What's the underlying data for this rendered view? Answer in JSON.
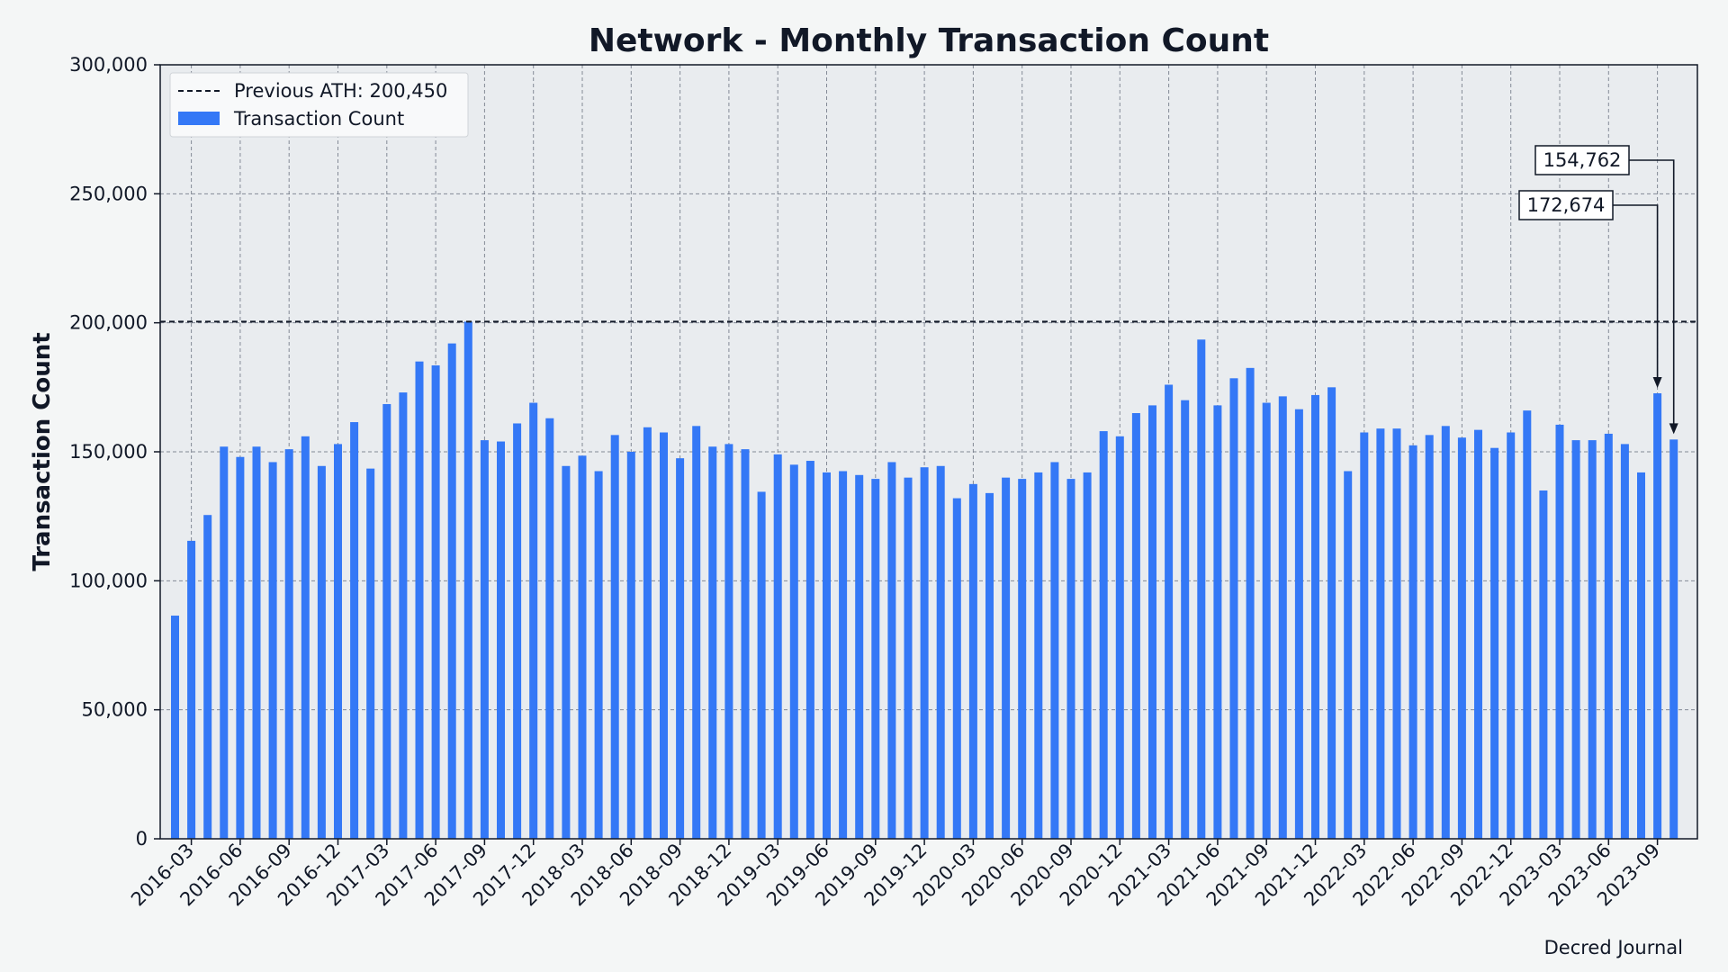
{
  "chart_data": {
    "type": "bar",
    "title": "Network - Monthly Transaction Count",
    "ylabel": "Transaction Count",
    "xlabel": "",
    "ylim": [
      0,
      300000
    ],
    "yticks": [
      0,
      50000,
      100000,
      150000,
      200000,
      250000,
      300000
    ],
    "ytick_labels": [
      "0",
      "50,000",
      "100,000",
      "150,000",
      "200,000",
      "250,000",
      "300,000"
    ],
    "grid": true,
    "legend_position": "top-left",
    "categories": [
      "2016-02",
      "2016-03",
      "2016-04",
      "2016-05",
      "2016-06",
      "2016-07",
      "2016-08",
      "2016-09",
      "2016-10",
      "2016-11",
      "2016-12",
      "2017-01",
      "2017-02",
      "2017-03",
      "2017-04",
      "2017-05",
      "2017-06",
      "2017-07",
      "2017-08",
      "2017-09",
      "2017-10",
      "2017-11",
      "2017-12",
      "2018-01",
      "2018-02",
      "2018-03",
      "2018-04",
      "2018-05",
      "2018-06",
      "2018-07",
      "2018-08",
      "2018-09",
      "2018-10",
      "2018-11",
      "2018-12",
      "2019-01",
      "2019-02",
      "2019-03",
      "2019-04",
      "2019-05",
      "2019-06",
      "2019-07",
      "2019-08",
      "2019-09",
      "2019-10",
      "2019-11",
      "2019-12",
      "2020-01",
      "2020-02",
      "2020-03",
      "2020-04",
      "2020-05",
      "2020-06",
      "2020-07",
      "2020-08",
      "2020-09",
      "2020-10",
      "2020-11",
      "2020-12",
      "2021-01",
      "2021-02",
      "2021-03",
      "2021-04",
      "2021-05",
      "2021-06",
      "2021-07",
      "2021-08",
      "2021-09",
      "2021-10",
      "2021-11",
      "2021-12",
      "2022-01",
      "2022-02",
      "2022-03",
      "2022-04",
      "2022-05",
      "2022-06",
      "2022-07",
      "2022-08",
      "2022-09",
      "2022-10",
      "2022-11",
      "2022-12",
      "2023-01",
      "2023-02",
      "2023-03",
      "2023-04",
      "2023-05",
      "2023-06",
      "2023-07",
      "2023-08",
      "2023-09",
      "2023-10"
    ],
    "xtick_labels": [
      "2016-03",
      "2016-06",
      "2016-09",
      "2016-12",
      "2017-03",
      "2017-06",
      "2017-09",
      "2017-12",
      "2018-03",
      "2018-06",
      "2018-09",
      "2018-12",
      "2019-03",
      "2019-06",
      "2019-09",
      "2019-12",
      "2020-03",
      "2020-06",
      "2020-09",
      "2020-12",
      "2021-03",
      "2021-06",
      "2021-09",
      "2021-12",
      "2022-03",
      "2022-06",
      "2022-09",
      "2022-12",
      "2023-03",
      "2023-06",
      "2023-09"
    ],
    "series": [
      {
        "name": "Transaction Count",
        "color": "#3478f6",
        "values": [
          86500,
          115500,
          125500,
          152000,
          148000,
          152000,
          146000,
          151000,
          156000,
          144500,
          153000,
          161500,
          143500,
          168500,
          173000,
          185000,
          183500,
          192000,
          200450,
          154500,
          154000,
          161000,
          169000,
          163000,
          144500,
          148500,
          142500,
          156500,
          150000,
          159500,
          157500,
          147500,
          160000,
          152000,
          153000,
          151000,
          134500,
          149000,
          145000,
          146500,
          142000,
          142500,
          141000,
          139500,
          146000,
          140000,
          144000,
          144500,
          132000,
          137500,
          134000,
          140000,
          139500,
          142000,
          146000,
          139500,
          142000,
          158000,
          156000,
          165000,
          168000,
          176000,
          170000,
          193500,
          168000,
          178500,
          182500,
          169000,
          171500,
          166500,
          172000,
          175000,
          142500,
          157500,
          159000,
          159000,
          152500,
          156500,
          160000,
          155500,
          158500,
          151500,
          157500,
          166000,
          135000,
          160500,
          154500,
          154500,
          157000,
          153000,
          142000,
          172674,
          154762
        ]
      }
    ],
    "reference_line": {
      "label": "Previous ATH: 200,450",
      "value": 200450,
      "color": "#111827",
      "style": "dashed"
    },
    "annotations": [
      {
        "text": "172,674",
        "index": 91
      },
      {
        "text": "154,762",
        "index": 92
      }
    ],
    "footer": "Decred Journal",
    "colors": {
      "bar": "#3478f6",
      "plot_bg": "#e9ecef",
      "figure_bg": "#f4f6f6",
      "grid": "#6b7280",
      "text": "#111827"
    }
  }
}
